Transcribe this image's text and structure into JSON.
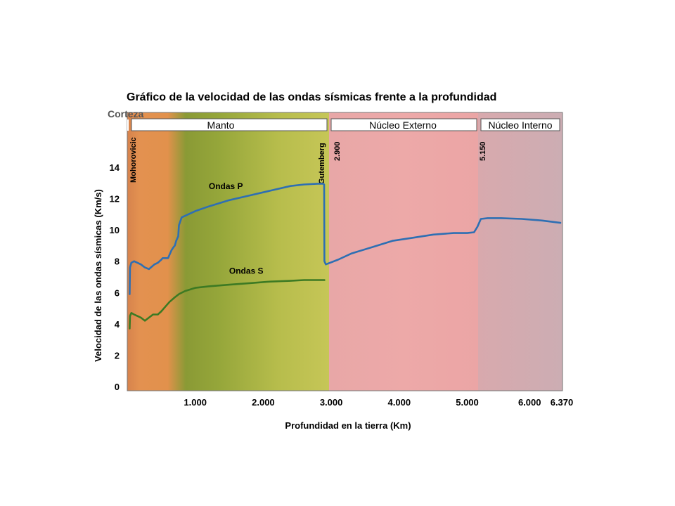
{
  "chart_data": {
    "type": "line",
    "title": "Gráfico de la velocidad de las ondas sísmicas frente a la profundidad",
    "xlabel": "Profundidad en la tierra (Km)",
    "ylabel": "Velocidad de las ondas sísmicas (Km/s)",
    "xlim": [
      0,
      6370
    ],
    "ylim": [
      0,
      16
    ],
    "x_ticks": [
      {
        "value": 1000,
        "label": "1.000"
      },
      {
        "value": 2000,
        "label": "2.000"
      },
      {
        "value": 3000,
        "label": "3.000"
      },
      {
        "value": 4000,
        "label": "4.000"
      },
      {
        "value": 5000,
        "label": "5.000"
      },
      {
        "value": 6000,
        "label": "6.000"
      },
      {
        "value": 6370,
        "label": "6.370"
      }
    ],
    "y_ticks": [
      {
        "value": 0,
        "label": "0"
      },
      {
        "value": 2,
        "label": "2"
      },
      {
        "value": 4,
        "label": "4"
      },
      {
        "value": 6,
        "label": "6"
      },
      {
        "value": 8,
        "label": "8"
      },
      {
        "value": 10,
        "label": "10"
      },
      {
        "value": 12,
        "label": "12"
      },
      {
        "value": 14,
        "label": "14"
      }
    ],
    "grid": false,
    "layers": [
      {
        "name": "Corteza",
        "start": 0,
        "end": 35
      },
      {
        "name": "Manto",
        "start": 35,
        "end": 2900
      },
      {
        "name": "Núcleo Externo",
        "start": 2900,
        "end": 5150
      },
      {
        "name": "Núcleo Interno",
        "start": 5150,
        "end": 6370
      }
    ],
    "boundaries": [
      {
        "name": "Mohorovicic",
        "depth": 35
      },
      {
        "name": "Gutemberg",
        "value_label": "2.900",
        "depth": 2900
      },
      {
        "name": "",
        "value_label": "5.150",
        "depth": 5150
      }
    ],
    "series": [
      {
        "name": "Ondas P",
        "color": "#2e6fb3",
        "x": [
          35,
          40,
          60,
          100,
          150,
          200,
          260,
          320,
          400,
          450,
          500,
          520,
          600,
          650,
          680,
          700,
          720,
          750,
          760,
          800,
          1000,
          1200,
          1500,
          1800,
          2100,
          2400,
          2600,
          2800,
          2880,
          2895,
          2900,
          2920,
          3100,
          3300,
          3600,
          3900,
          4200,
          4500,
          4800,
          5000,
          5100,
          5150,
          5200,
          5300,
          5500,
          5800,
          6100,
          6370
        ],
        "y": [
          5.9,
          7.6,
          7.9,
          8.0,
          7.9,
          7.8,
          7.6,
          7.5,
          7.8,
          7.9,
          8.1,
          8.2,
          8.2,
          8.7,
          8.9,
          9.0,
          9.3,
          9.6,
          10.3,
          10.8,
          11.2,
          11.5,
          11.9,
          12.2,
          12.5,
          12.8,
          12.9,
          12.95,
          12.95,
          12.9,
          8.0,
          7.8,
          8.1,
          8.5,
          8.9,
          9.3,
          9.5,
          9.7,
          9.8,
          9.8,
          9.85,
          10.2,
          10.7,
          10.75,
          10.75,
          10.7,
          10.6,
          10.45
        ]
      },
      {
        "name": "Ondas S",
        "color": "#3d7a23",
        "x": [
          35,
          40,
          60,
          100,
          150,
          200,
          260,
          320,
          380,
          450,
          500,
          560,
          620,
          700,
          760,
          850,
          1000,
          1200,
          1500,
          1800,
          2100,
          2400,
          2600,
          2800,
          2890,
          2900
        ],
        "y": [
          3.7,
          4.5,
          4.7,
          4.6,
          4.5,
          4.4,
          4.2,
          4.4,
          4.6,
          4.6,
          4.8,
          5.1,
          5.4,
          5.7,
          5.9,
          6.1,
          6.3,
          6.4,
          6.5,
          6.6,
          6.7,
          6.75,
          6.8,
          6.8,
          6.8,
          6.8
        ]
      }
    ],
    "series_labels": [
      {
        "text": "Ondas P",
        "x": 1450,
        "y": 12.6
      },
      {
        "text": "Ondas S",
        "x": 1750,
        "y": 7.2
      }
    ]
  }
}
